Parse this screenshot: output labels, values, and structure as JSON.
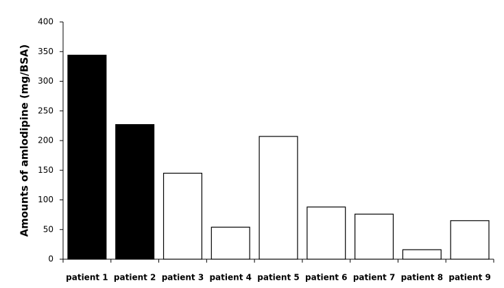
{
  "chart_data": {
    "type": "bar",
    "ylabel": "Amounts of amlodipine  (mg/BSA)",
    "categories": [
      "patient 1",
      "patient 2",
      "patient 3",
      "patient 4",
      "patient 5",
      "patient 6",
      "patient 7",
      "patient 8",
      "patient 9"
    ],
    "values": [
      344,
      227,
      145,
      54,
      207,
      88,
      76,
      16,
      65
    ],
    "colors": [
      "#000000",
      "#000000",
      "#ffffff",
      "#ffffff",
      "#ffffff",
      "#ffffff",
      "#ffffff",
      "#ffffff",
      "#ffffff"
    ],
    "edgecolor": "#000000",
    "ylim": [
      0,
      400
    ],
    "yticks": [
      0,
      50,
      100,
      150,
      200,
      250,
      300,
      350,
      400
    ],
    "grid": false
  }
}
